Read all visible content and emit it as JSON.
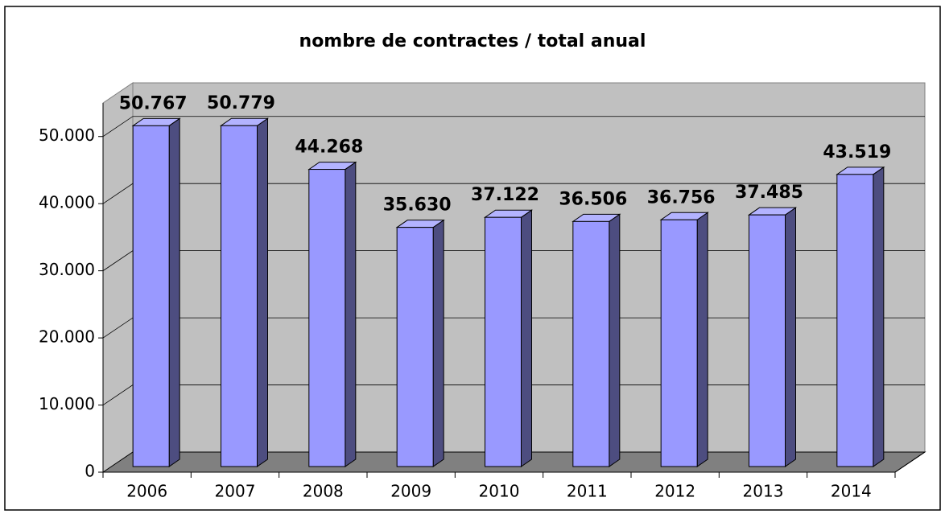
{
  "chart_data": {
    "type": "bar",
    "title": "nombre de contractes / total anual",
    "categories": [
      "2006",
      "2007",
      "2008",
      "2009",
      "2010",
      "2011",
      "2012",
      "2013",
      "2014"
    ],
    "values": [
      50767,
      50779,
      44268,
      35630,
      37122,
      36506,
      36756,
      37485,
      43519
    ],
    "value_labels": [
      "50.767",
      "50.779",
      "44.268",
      "35.630",
      "37.122",
      "36.506",
      "36.756",
      "37.485",
      "43.519"
    ],
    "color": "#9999ff",
    "ylim": [
      0,
      55000
    ],
    "yticks": [
      0,
      {
        "value": 10000,
        "label": "10.000"
      },
      {
        "value": 20000,
        "label": "20.000"
      },
      {
        "value": 30000,
        "label": "30.000"
      },
      {
        "value": 40000,
        "label": "40.000"
      },
      {
        "value": 50000,
        "label": "50.000"
      }
    ],
    "grid": true
  }
}
